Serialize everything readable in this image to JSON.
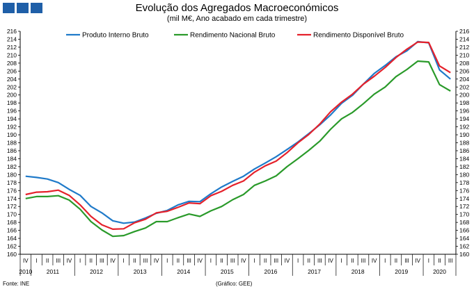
{
  "header": {
    "title": "Evolução dos Agregados Macroeconómicos",
    "subtitle": "(mil M€, Ano acabado em cada trimestre)"
  },
  "footer": {
    "source": "Fonte: INE",
    "credit": "(Gráfico: GEE)"
  },
  "colors": {
    "brand": "#1f5fa8",
    "pib": "#1f7ac9",
    "rnb": "#2a9a2a",
    "rdb": "#e5212b"
  },
  "chart_data": {
    "type": "line",
    "title": "Evolução dos Agregados Macroeconómicos",
    "subtitle": "(mil M€, Ano acabado em cada trimestre)",
    "ylim": [
      160,
      216
    ],
    "ystep": 2,
    "yticks_both_sides": true,
    "grid": false,
    "legend_position": "top",
    "x": [
      "IV",
      "I",
      "II",
      "III",
      "IV",
      "I",
      "II",
      "III",
      "IV",
      "I",
      "II",
      "III",
      "IV",
      "I",
      "II",
      "III",
      "IV",
      "I",
      "II",
      "III",
      "IV",
      "I",
      "II",
      "III",
      "IV",
      "I",
      "II",
      "III",
      "IV",
      "I",
      "II",
      "III",
      "IV",
      "I",
      "II",
      "III",
      "IV",
      "I",
      "II",
      "III"
    ],
    "years": [
      {
        "label": "2010",
        "start": 0,
        "end": 0
      },
      {
        "label": "2011",
        "start": 1,
        "end": 4
      },
      {
        "label": "2012",
        "start": 5,
        "end": 8
      },
      {
        "label": "2013",
        "start": 9,
        "end": 12
      },
      {
        "label": "2014",
        "start": 13,
        "end": 16
      },
      {
        "label": "2015",
        "start": 17,
        "end": 20
      },
      {
        "label": "2016",
        "start": 21,
        "end": 24
      },
      {
        "label": "2017",
        "start": 25,
        "end": 28
      },
      {
        "label": "2018",
        "start": 29,
        "end": 32
      },
      {
        "label": "2019",
        "start": 33,
        "end": 36
      },
      {
        "label": "2020",
        "start": 37,
        "end": 39
      }
    ],
    "series": [
      {
        "name": "Produto Interno Bruto",
        "color": "#1f7ac9",
        "values": [
          179.6,
          179.3,
          178.9,
          178.0,
          176.3,
          174.8,
          172.0,
          170.4,
          168.4,
          167.8,
          168.1,
          169.1,
          170.3,
          171.0,
          172.4,
          173.3,
          173.2,
          175.2,
          176.9,
          178.3,
          179.6,
          181.4,
          182.9,
          184.5,
          186.3,
          188.2,
          190.3,
          192.5,
          195.0,
          197.9,
          199.9,
          202.7,
          205.4,
          207.4,
          209.6,
          211.1,
          213.4,
          213.1,
          206.3,
          204.0
        ]
      },
      {
        "name": "Rendimento Nacional Bruto",
        "color": "#2a9a2a",
        "values": [
          174.0,
          174.5,
          174.5,
          174.7,
          173.6,
          171.3,
          168.2,
          166.1,
          164.5,
          164.7,
          165.7,
          166.6,
          168.2,
          168.2,
          169.2,
          170.1,
          169.5,
          170.9,
          172.0,
          173.7,
          175.0,
          177.3,
          178.4,
          179.7,
          182.0,
          184.0,
          186.1,
          188.4,
          191.4,
          194.0,
          195.6,
          197.8,
          200.2,
          202.0,
          204.6,
          206.4,
          208.5,
          208.3,
          202.6,
          201.0
        ]
      },
      {
        "name": "Rendimento Disponível Bruto",
        "color": "#e5212b",
        "values": [
          175.0,
          175.6,
          175.7,
          176.1,
          174.8,
          172.4,
          169.5,
          167.4,
          166.3,
          166.4,
          167.9,
          168.8,
          170.4,
          170.8,
          171.8,
          172.9,
          172.7,
          174.7,
          175.8,
          177.3,
          178.4,
          180.6,
          182.2,
          183.4,
          185.5,
          188.0,
          190.1,
          192.7,
          195.8,
          198.2,
          200.2,
          202.7,
          204.7,
          206.9,
          209.4,
          211.5,
          213.3,
          213.2,
          207.3,
          205.6
        ]
      }
    ]
  }
}
